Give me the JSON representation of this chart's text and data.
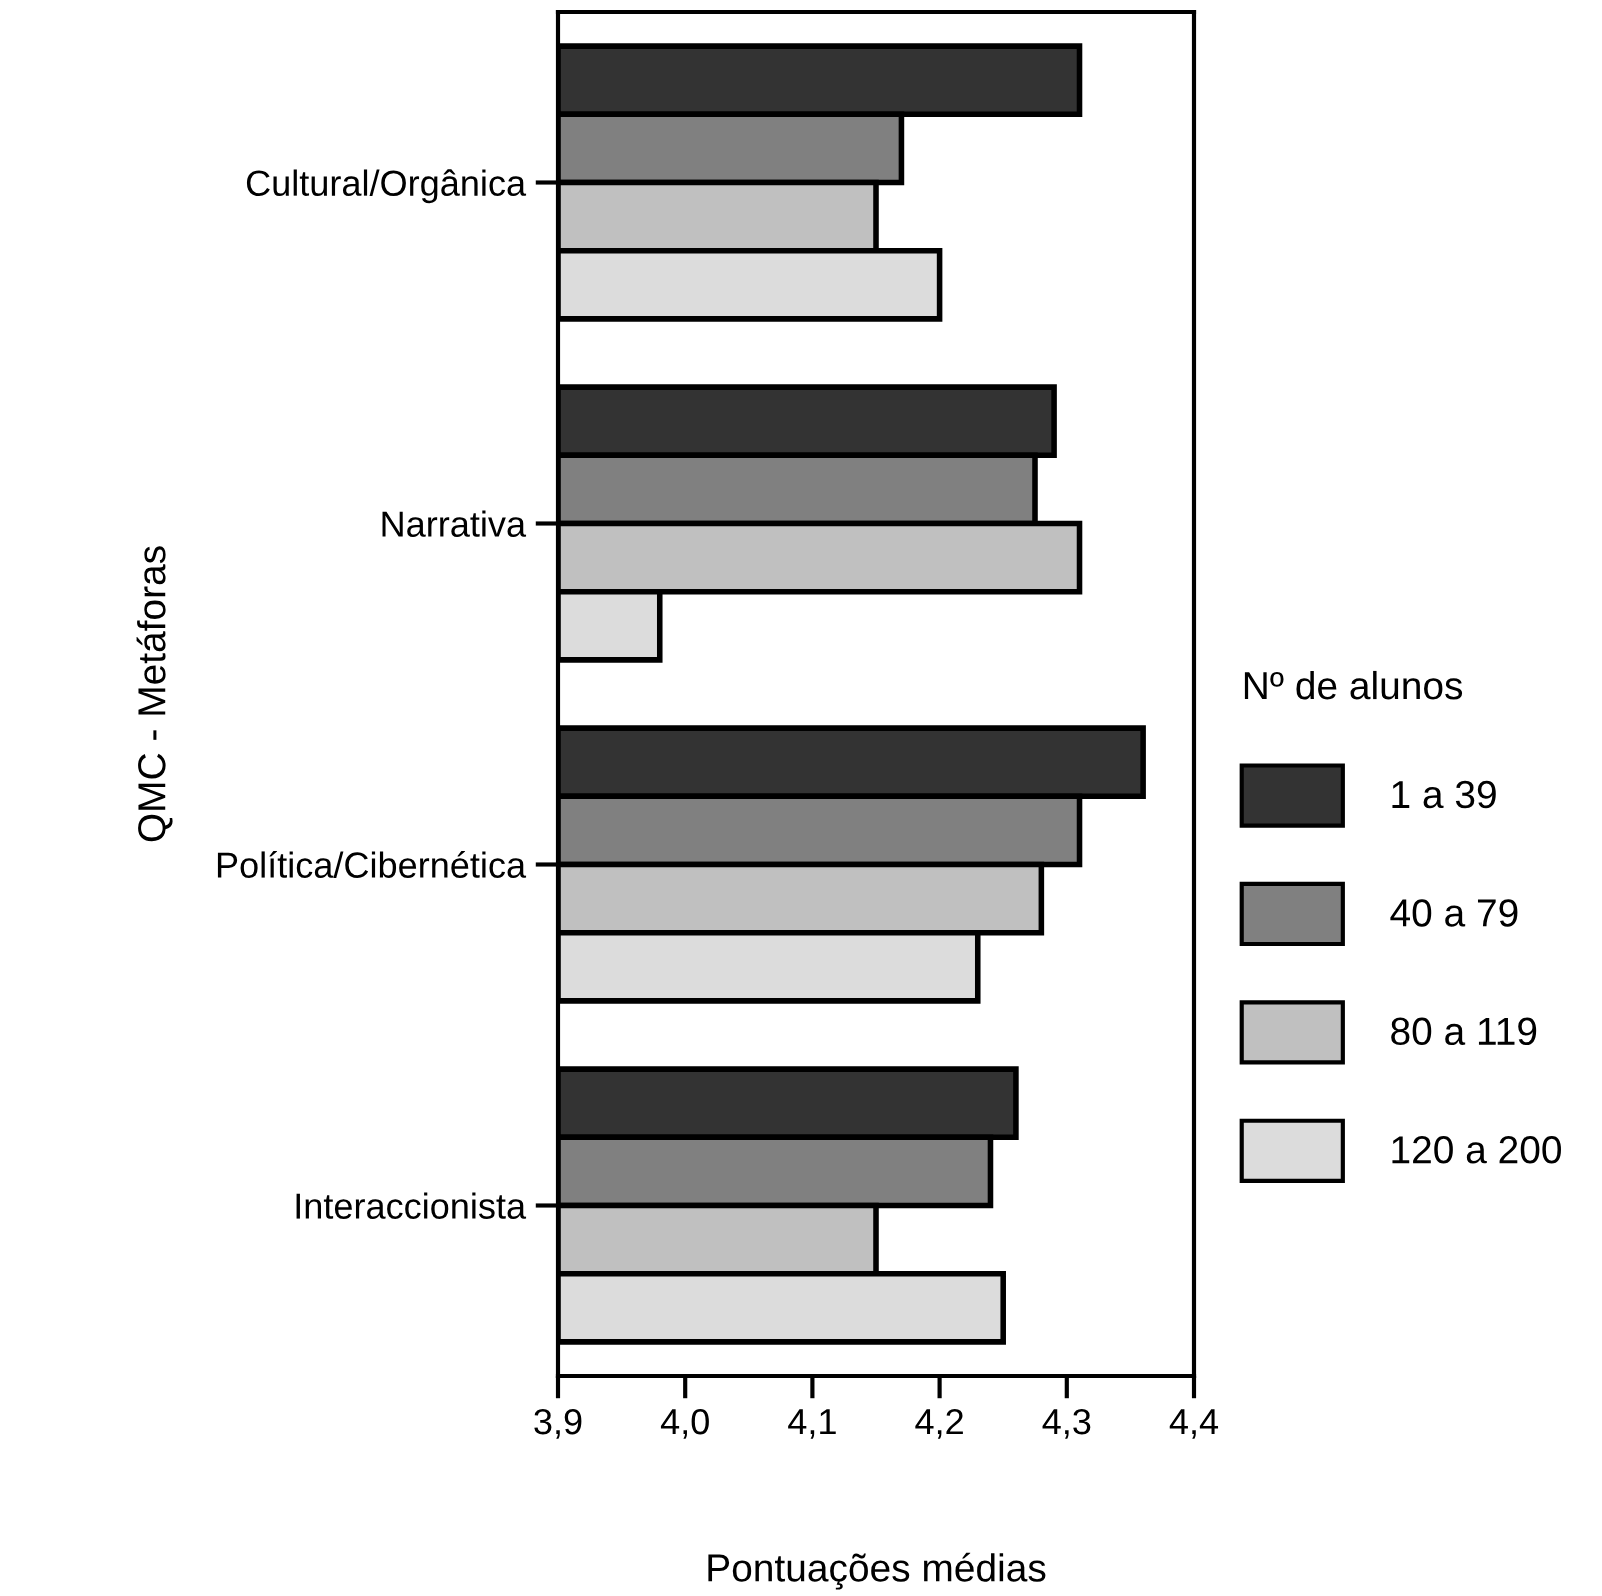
{
  "chart_data": {
    "type": "bar",
    "orientation": "horizontal",
    "xlabel": "Pontuações médias",
    "ylabel": "QMC - Metáforas",
    "legend_title": "Nº de alunos",
    "categories": [
      "Cultural/Orgânica",
      "Narrativa",
      "Política/Cibernética",
      "Interaccionista"
    ],
    "series": [
      {
        "name": "1 a 39",
        "color": "#333333",
        "values": [
          4.31,
          4.29,
          4.36,
          4.26
        ]
      },
      {
        "name": "40 a 79",
        "color": "#808080",
        "values": [
          4.17,
          4.275,
          4.31,
          4.24
        ]
      },
      {
        "name": "80 a 119",
        "color": "#c0c0c0",
        "values": [
          4.15,
          4.31,
          4.28,
          4.15
        ]
      },
      {
        "name": "120 a 200",
        "color": "#dcdcdc",
        "values": [
          4.2,
          3.98,
          4.23,
          4.25
        ]
      }
    ],
    "xlim": [
      3.9,
      4.4
    ],
    "xticks": [
      {
        "value": 3.9,
        "label": "3,9"
      },
      {
        "value": 4.0,
        "label": "4,0"
      },
      {
        "value": 4.1,
        "label": "4,1"
      },
      {
        "value": 4.2,
        "label": "4,2"
      },
      {
        "value": 4.3,
        "label": "4,3"
      },
      {
        "value": 4.4,
        "label": "4,4"
      }
    ],
    "legend": "right",
    "grid": false
  }
}
